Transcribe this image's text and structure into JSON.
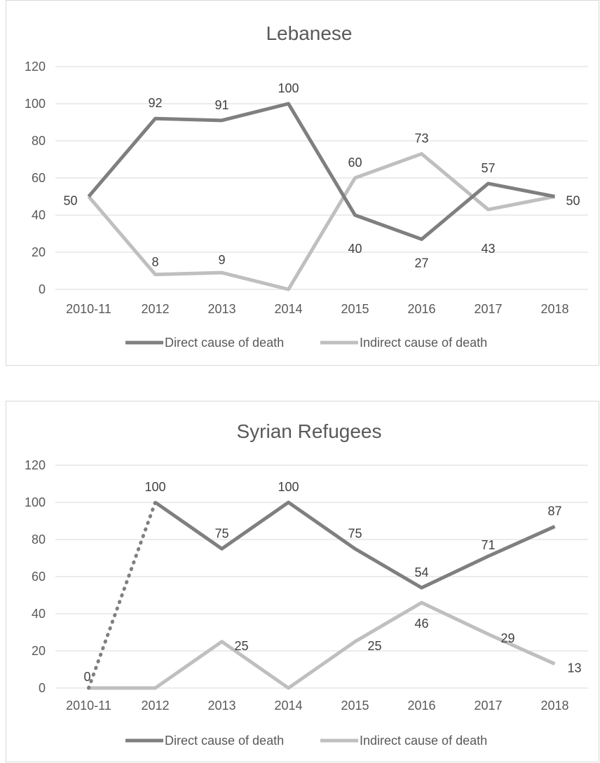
{
  "chart_data": [
    {
      "type": "line",
      "title": "Lebanese",
      "categories": [
        "2010-11",
        "2012",
        "2013",
        "2014",
        "2015",
        "2016",
        "2017",
        "2018"
      ],
      "series": [
        {
          "name": "Direct cause of death",
          "values": [
            50,
            92,
            91,
            100,
            40,
            27,
            57,
            50
          ],
          "color": "#7f7f7f"
        },
        {
          "name": "Indirect cause of death",
          "values": [
            50,
            8,
            9,
            0,
            60,
            73,
            43,
            50
          ],
          "color": "#bfbfbf"
        }
      ],
      "y_ticks": [
        "0",
        "20",
        "40",
        "60",
        "80",
        "100",
        "120"
      ],
      "ylim": [
        0,
        120
      ],
      "grid": true,
      "legend_position": "bottom",
      "data_labels": {
        "direct": [
          "50",
          "92",
          "91",
          "100",
          "40",
          "27",
          "57",
          "50"
        ],
        "indirect": [
          "",
          "8",
          "9",
          "",
          "60",
          "73",
          "43",
          ""
        ]
      }
    },
    {
      "type": "line",
      "title": "Syrian Refugees",
      "categories": [
        "2010-11",
        "2012",
        "2013",
        "2014",
        "2015",
        "2016",
        "2017",
        "2018"
      ],
      "series": [
        {
          "name": "Direct cause of death",
          "values": [
            0,
            100,
            75,
            100,
            75,
            54,
            71,
            87
          ],
          "color": "#7f7f7f",
          "dotted_first_segment": true
        },
        {
          "name": "Indirect cause of death",
          "values": [
            0,
            0,
            25,
            0,
            25,
            46,
            29,
            13
          ],
          "color": "#bfbfbf"
        }
      ],
      "y_ticks": [
        "0",
        "20",
        "40",
        "60",
        "80",
        "100",
        "120"
      ],
      "ylim": [
        0,
        120
      ],
      "grid": true,
      "legend_position": "bottom",
      "data_labels": {
        "direct": [
          "0",
          "100",
          "75",
          "100",
          "75",
          "54",
          "71",
          "87"
        ],
        "indirect": [
          "",
          "",
          "25",
          "",
          "25",
          "46",
          "29",
          "13"
        ]
      }
    }
  ]
}
